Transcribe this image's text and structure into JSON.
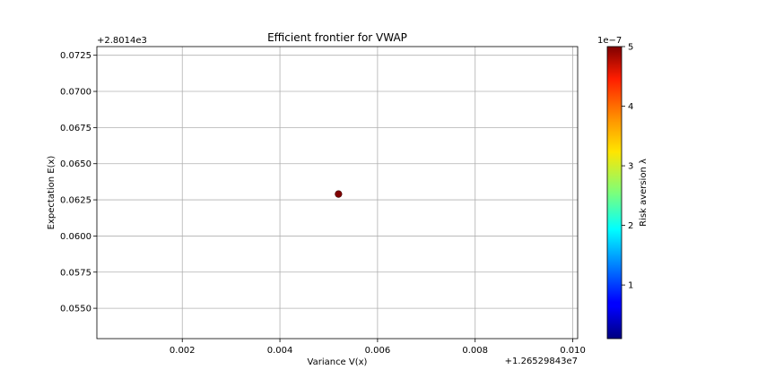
{
  "chart_data": {
    "type": "scatter",
    "title": "Efficient frontier for VWAP",
    "xlabel": "Variance V(x)",
    "ylabel": "Expectation E(x)",
    "x_offset_label": "+1.26529843e7",
    "y_offset_label": "+2.8014e3",
    "x_ticks": [
      0.002,
      0.004,
      0.006,
      0.008,
      0.01
    ],
    "x_tick_labels": [
      "0.002",
      "0.004",
      "0.006",
      "0.008",
      "0.010"
    ],
    "y_ticks": [
      0.055,
      0.0575,
      0.06,
      0.0625,
      0.065,
      0.0675,
      0.07,
      0.0725
    ],
    "y_tick_labels": [
      "0.0550",
      "0.0575",
      "0.0600",
      "0.0625",
      "0.0650",
      "0.0675",
      "0.0700",
      "0.0725"
    ],
    "xlim": [
      0.00025,
      0.0101
    ],
    "ylim": [
      0.0529,
      0.0731
    ],
    "grid": true,
    "points": [
      {
        "x": 0.0052,
        "y": 0.0629,
        "c": 5e-07
      }
    ],
    "point_color": "#800000",
    "colorbar": {
      "label": "Risk aversion λ",
      "offset_label": "1e−7",
      "ticks": [
        1,
        2,
        3,
        4,
        5
      ],
      "tick_labels": [
        "1",
        "2",
        "3",
        "4",
        "5"
      ],
      "range": [
        0.1,
        5
      ],
      "colormap": "jet"
    }
  }
}
